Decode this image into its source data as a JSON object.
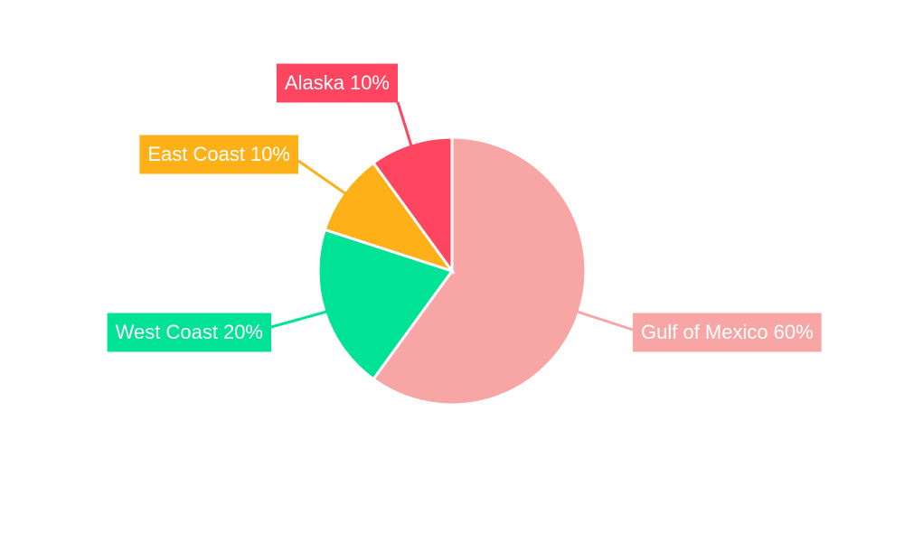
{
  "chart_data": {
    "type": "pie",
    "categories": [
      "Gulf of Mexico",
      "West Coast",
      "East Coast",
      "Alaska"
    ],
    "values": [
      60,
      20,
      10,
      10
    ],
    "value_labels": [
      "60%",
      "20%",
      "10%",
      "10%"
    ],
    "colors": [
      "#f8a5a5",
      "#00e396",
      "#feb019",
      "#ff4560"
    ]
  }
}
